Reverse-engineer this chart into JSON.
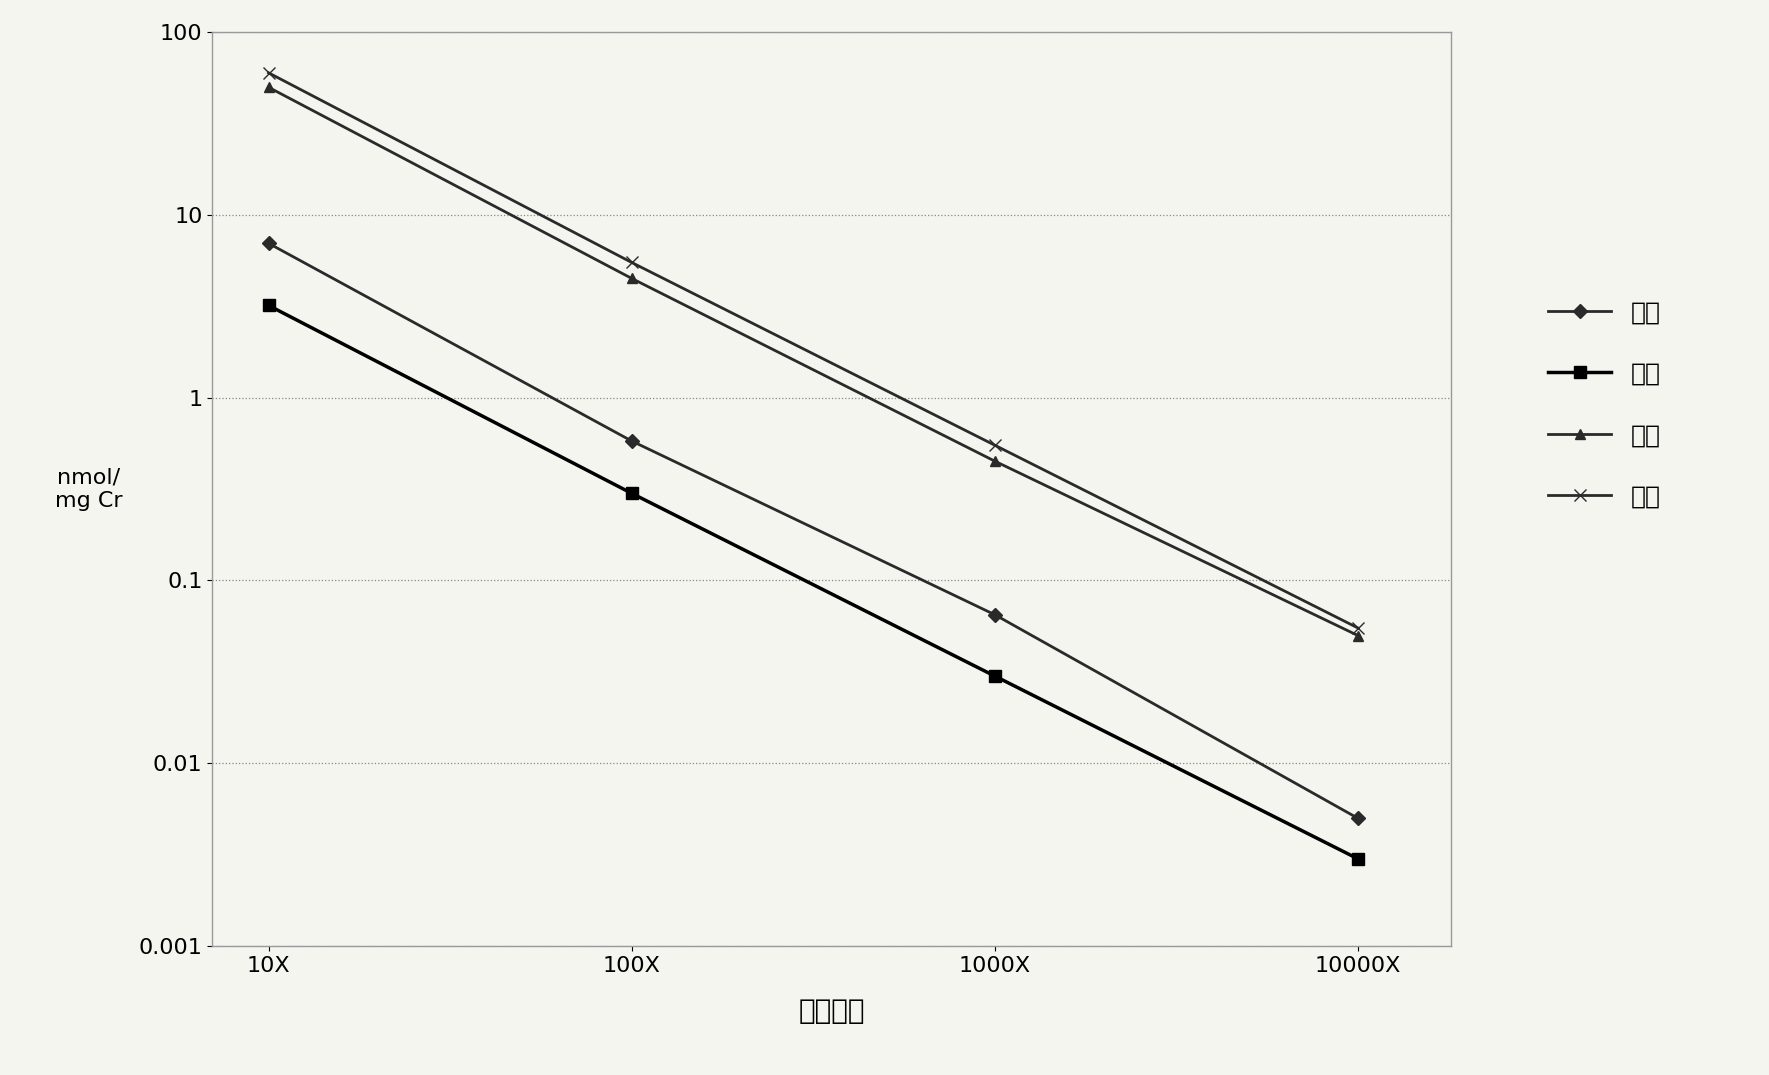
{
  "x_labels": [
    "10X",
    "100X",
    "1000X",
    "10000X"
  ],
  "x_values": [
    10,
    100,
    1000,
    10000
  ],
  "series": [
    {
      "name": "精脒",
      "marker": "D",
      "color": "#2a2a2a",
      "linewidth": 2.0,
      "markersize": 7,
      "values": [
        7.0,
        0.58,
        0.065,
        0.005
      ]
    },
    {
      "name": "精胺",
      "marker": "s",
      "color": "#000000",
      "linewidth": 2.5,
      "markersize": 8,
      "values": [
        3.2,
        0.3,
        0.03,
        0.003
      ]
    },
    {
      "name": "腐胺",
      "marker": "^",
      "color": "#2a2a2a",
      "linewidth": 2.0,
      "markersize": 7,
      "values": [
        50.0,
        4.5,
        0.45,
        0.05
      ]
    },
    {
      "name": "多胺",
      "marker": "x",
      "color": "#2a2a2a",
      "linewidth": 2.0,
      "markersize": 9,
      "values": [
        60.0,
        5.5,
        0.55,
        0.055
      ]
    }
  ],
  "ylabel_line1": "nmol/",
  "ylabel_line2": "mg Cr",
  "xlabel": "稀释倍数",
  "ylim_min": 0.001,
  "ylim_max": 100,
  "background_color": "#f5f5f0",
  "grid_color": "#888888",
  "legend_fontsize": 18,
  "tick_fontsize": 16,
  "xlabel_fontsize": 20,
  "ylabel_fontsize": 16
}
